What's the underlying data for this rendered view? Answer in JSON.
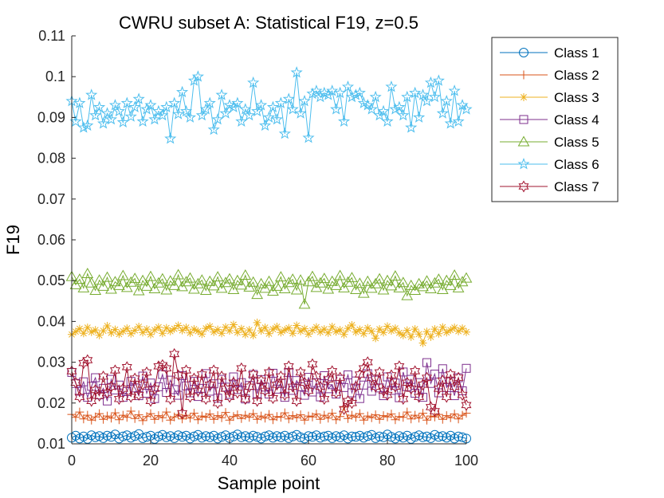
{
  "chart_data": {
    "type": "line",
    "title": "CWRU subset A: Statistical F19, z=0.5",
    "xlabel": "Sample point",
    "ylabel": "F19",
    "xlim": [
      0,
      100
    ],
    "ylim": [
      0.01,
      0.11
    ],
    "xticks": [
      0,
      20,
      40,
      60,
      80,
      100
    ],
    "xtick_labels": [
      "0",
      "20",
      "40",
      "60",
      "80",
      "100"
    ],
    "yticks": [
      0.01,
      0.02,
      0.03,
      0.04,
      0.05,
      0.06,
      0.07,
      0.08,
      0.09,
      0.1,
      0.11
    ],
    "ytick_labels": [
      "0.01",
      "0.02",
      "0.03",
      "0.04",
      "0.05",
      "0.06",
      "0.07",
      "0.08",
      "0.09",
      "0.1",
      "0.11"
    ],
    "grid": false,
    "legend_position": "outside-top-right",
    "x": [
      0,
      1,
      2,
      3,
      4,
      5,
      6,
      7,
      8,
      9,
      10,
      11,
      12,
      13,
      14,
      15,
      16,
      17,
      18,
      19,
      20,
      21,
      22,
      23,
      24,
      25,
      26,
      27,
      28,
      29,
      30,
      31,
      32,
      33,
      34,
      35,
      36,
      37,
      38,
      39,
      40,
      41,
      42,
      43,
      44,
      45,
      46,
      47,
      48,
      49,
      50,
      51,
      52,
      53,
      54,
      55,
      56,
      57,
      58,
      59,
      60,
      61,
      62,
      63,
      64,
      65,
      66,
      67,
      68,
      69,
      70,
      71,
      72,
      73,
      74,
      75,
      76,
      77,
      78,
      79,
      80,
      81,
      82,
      83,
      84,
      85,
      86,
      87,
      88,
      89,
      90,
      91,
      92,
      93,
      94,
      95,
      96,
      97,
      98,
      99,
      100
    ],
    "series": [
      {
        "name": "Class 1",
        "color": "#0072BD",
        "marker": "circle",
        "values": [
          0.0115,
          0.012,
          0.0113,
          0.0118,
          0.0112,
          0.0121,
          0.0116,
          0.0119,
          0.0114,
          0.012,
          0.0117,
          0.0123,
          0.0113,
          0.0118,
          0.0121,
          0.0115,
          0.0119,
          0.0124,
          0.0114,
          0.0117,
          0.012,
          0.0112,
          0.0118,
          0.0122,
          0.0116,
          0.0119,
          0.0114,
          0.0121,
          0.0117,
          0.012,
          0.0113,
          0.0118,
          0.0122,
          0.0115,
          0.0119,
          0.0116,
          0.012,
          0.0113,
          0.0117,
          0.0121,
          0.0114,
          0.0118,
          0.0123,
          0.0116,
          0.0119,
          0.0115,
          0.012,
          0.0117,
          0.0113,
          0.0118,
          0.0121,
          0.0115,
          0.0119,
          0.0116,
          0.012,
          0.0114,
          0.0118,
          0.0122,
          0.0116,
          0.0113,
          0.0119,
          0.0117,
          0.0121,
          0.0115,
          0.0118,
          0.012,
          0.0114,
          0.0119,
          0.0116,
          0.0121,
          0.0113,
          0.0118,
          0.0117,
          0.012,
          0.0115,
          0.0119,
          0.0122,
          0.0114,
          0.0118,
          0.0116,
          0.0123,
          0.0117,
          0.0113,
          0.0119,
          0.0115,
          0.012,
          0.0112,
          0.0117,
          0.0121,
          0.0116,
          0.0118,
          0.0114,
          0.0122,
          0.0117,
          0.0119,
          0.0115,
          0.012,
          0.0113,
          0.0118,
          0.0116,
          0.0113
        ]
      },
      {
        "name": "Class 2",
        "color": "#D95319",
        "marker": "plus",
        "values": [
          0.0172,
          0.0165,
          0.0178,
          0.0161,
          0.017,
          0.0158,
          0.0166,
          0.0174,
          0.016,
          0.0168,
          0.0163,
          0.0176,
          0.0159,
          0.017,
          0.0165,
          0.018,
          0.0162,
          0.0171,
          0.0157,
          0.0167,
          0.0174,
          0.016,
          0.0169,
          0.0164,
          0.0178,
          0.0158,
          0.0166,
          0.0172,
          0.0161,
          0.017,
          0.0163,
          0.0175,
          0.0159,
          0.0168,
          0.0165,
          0.0173,
          0.016,
          0.0169,
          0.0164,
          0.0177,
          0.0158,
          0.0167,
          0.0171,
          0.0162,
          0.017,
          0.0165,
          0.0174,
          0.016,
          0.0168,
          0.0163,
          0.0172,
          0.0159,
          0.0167,
          0.0165,
          0.0176,
          0.0161,
          0.0169,
          0.0164,
          0.0171,
          0.0158,
          0.0168,
          0.0166,
          0.0173,
          0.016,
          0.017,
          0.0163,
          0.0175,
          0.0159,
          0.0167,
          0.019,
          0.0162,
          0.017,
          0.0165,
          0.0174,
          0.0158,
          0.0168,
          0.0164,
          0.0171,
          0.016,
          0.0169,
          0.0166,
          0.0173,
          0.0159,
          0.0167,
          0.0165,
          0.0178,
          0.0161,
          0.017,
          0.0163,
          0.0175,
          0.0158,
          0.0168,
          0.0166,
          0.0172,
          0.016,
          0.0169,
          0.0164,
          0.0173,
          0.0161,
          0.017,
          0.0175
        ]
      },
      {
        "name": "Class 3",
        "color": "#EDB120",
        "marker": "asterisk",
        "values": [
          0.0368,
          0.0375,
          0.0382,
          0.0371,
          0.0385,
          0.0374,
          0.0379,
          0.0366,
          0.0377,
          0.0389,
          0.0372,
          0.038,
          0.0369,
          0.0376,
          0.0383,
          0.037,
          0.0378,
          0.0387,
          0.0373,
          0.0381,
          0.0368,
          0.0379,
          0.0386,
          0.0371,
          0.0384,
          0.0376,
          0.0382,
          0.039,
          0.0378,
          0.0385,
          0.0372,
          0.0381,
          0.0376,
          0.0369,
          0.0383,
          0.0388,
          0.0374,
          0.038,
          0.0371,
          0.0386,
          0.0377,
          0.0392,
          0.0373,
          0.0382,
          0.0368,
          0.0379,
          0.0366,
          0.0397,
          0.0377,
          0.0385,
          0.037,
          0.0381,
          0.0387,
          0.0373,
          0.0379,
          0.0384,
          0.0371,
          0.039,
          0.0376,
          0.0382,
          0.0369,
          0.0378,
          0.0386,
          0.0374,
          0.0381,
          0.0372,
          0.0387,
          0.0375,
          0.0379,
          0.0368,
          0.0383,
          0.0391,
          0.0374,
          0.038,
          0.037,
          0.0384,
          0.0376,
          0.0359,
          0.0381,
          0.0373,
          0.0388,
          0.0377,
          0.0383,
          0.0372,
          0.0366,
          0.0378,
          0.0362,
          0.0381,
          0.0369,
          0.0347,
          0.0375,
          0.0362,
          0.0381,
          0.037,
          0.0386,
          0.0373,
          0.0379,
          0.0385,
          0.0376,
          0.0383,
          0.0374
        ]
      },
      {
        "name": "Class 4",
        "color": "#7E2F8E",
        "marker": "square",
        "values": [
          0.0275,
          0.0248,
          0.0229,
          0.0252,
          0.0214,
          0.0241,
          0.0262,
          0.022,
          0.0236,
          0.0205,
          0.0258,
          0.0232,
          0.0244,
          0.0214,
          0.0228,
          0.0253,
          0.0237,
          0.0218,
          0.0266,
          0.0224,
          0.0249,
          0.0211,
          0.024,
          0.027,
          0.0226,
          0.0256,
          0.0233,
          0.0219,
          0.0267,
          0.0242,
          0.0225,
          0.0253,
          0.0216,
          0.0236,
          0.0272,
          0.0229,
          0.0247,
          0.0212,
          0.0258,
          0.0239,
          0.0221,
          0.0264,
          0.0233,
          0.025,
          0.021,
          0.0243,
          0.027,
          0.0223,
          0.0257,
          0.0239,
          0.0222,
          0.0273,
          0.0234,
          0.0248,
          0.0214,
          0.0275,
          0.0231,
          0.0255,
          0.024,
          0.0219,
          0.0263,
          0.0227,
          0.025,
          0.0215,
          0.0267,
          0.0235,
          0.0245,
          0.0222,
          0.0258,
          0.0238,
          0.0269,
          0.0225,
          0.0254,
          0.0211,
          0.0244,
          0.0272,
          0.0229,
          0.0256,
          0.0237,
          0.0218,
          0.0264,
          0.0231,
          0.0249,
          0.0213,
          0.0276,
          0.024,
          0.0258,
          0.0224,
          0.025,
          0.0214,
          0.0299,
          0.0248,
          0.0271,
          0.0225,
          0.0284,
          0.0238,
          0.0252,
          0.0218,
          0.0262,
          0.023,
          0.0285
        ]
      },
      {
        "name": "Class 5",
        "color": "#77AC30",
        "marker": "triangle",
        "values": [
          0.051,
          0.049,
          0.0503,
          0.0482,
          0.0517,
          0.0494,
          0.0476,
          0.0501,
          0.0486,
          0.0508,
          0.0479,
          0.0497,
          0.0488,
          0.0512,
          0.0483,
          0.0496,
          0.0505,
          0.0475,
          0.05,
          0.0486,
          0.051,
          0.048,
          0.0494,
          0.0504,
          0.0477,
          0.0499,
          0.0488,
          0.0514,
          0.0485,
          0.0497,
          0.0506,
          0.0479,
          0.0492,
          0.0501,
          0.0476,
          0.0498,
          0.0487,
          0.0509,
          0.0481,
          0.0495,
          0.0504,
          0.0478,
          0.05,
          0.0489,
          0.0513,
          0.0484,
          0.0496,
          0.0466,
          0.0492,
          0.0481,
          0.0498,
          0.0474,
          0.0486,
          0.0509,
          0.048,
          0.0495,
          0.0503,
          0.0477,
          0.0501,
          0.0442,
          0.0497,
          0.051,
          0.0483,
          0.0494,
          0.0505,
          0.0479,
          0.0498,
          0.0488,
          0.0512,
          0.0482,
          0.0496,
          0.0507,
          0.0478,
          0.0493,
          0.0469,
          0.0498,
          0.0481,
          0.0492,
          0.0504,
          0.0477,
          0.05,
          0.0487,
          0.0511,
          0.0482,
          0.0495,
          0.0463,
          0.0488,
          0.0476,
          0.0492,
          0.0485,
          0.0499,
          0.048,
          0.0494,
          0.0503,
          0.0478,
          0.05,
          0.0488,
          0.0513,
          0.0482,
          0.0497,
          0.0506
        ]
      },
      {
        "name": "Class 6",
        "color": "#4DBEEE",
        "marker": "pentagram",
        "values": [
          0.094,
          0.089,
          0.0935,
          0.0875,
          0.088,
          0.0955,
          0.0905,
          0.0925,
          0.0885,
          0.091,
          0.0895,
          0.093,
          0.0915,
          0.0888,
          0.0935,
          0.0902,
          0.0925,
          0.0945,
          0.089,
          0.092,
          0.093,
          0.0895,
          0.0915,
          0.0905,
          0.0925,
          0.0848,
          0.0935,
          0.0908,
          0.0962,
          0.0915,
          0.09,
          0.099,
          0.1,
          0.0905,
          0.092,
          0.0935,
          0.087,
          0.0895,
          0.0955,
          0.091,
          0.093,
          0.0925,
          0.0935,
          0.089,
          0.092,
          0.0905,
          0.0985,
          0.0915,
          0.093,
          0.088,
          0.09,
          0.0925,
          0.0895,
          0.0935,
          0.086,
          0.0945,
          0.092,
          0.101,
          0.091,
          0.094,
          0.085,
          0.0958,
          0.0965,
          0.095,
          0.096,
          0.0955,
          0.0965,
          0.092,
          0.096,
          0.089,
          0.0975,
          0.095,
          0.0955,
          0.096,
          0.0935,
          0.093,
          0.092,
          0.095,
          0.0905,
          0.0915,
          0.089,
          0.0975,
          0.092,
          0.0925,
          0.0905,
          0.095,
          0.0875,
          0.096,
          0.09,
          0.0955,
          0.094,
          0.0985,
          0.095,
          0.099,
          0.091,
          0.094,
          0.0885,
          0.0965,
          0.089,
          0.093,
          0.092
        ]
      },
      {
        "name": "Class 7",
        "color": "#A2142F",
        "marker": "hexagram",
        "values": [
          0.0278,
          0.025,
          0.0215,
          0.0298,
          0.0305,
          0.0205,
          0.0232,
          0.0218,
          0.0265,
          0.0225,
          0.024,
          0.028,
          0.021,
          0.0235,
          0.0288,
          0.0215,
          0.026,
          0.022,
          0.0245,
          0.0275,
          0.0205,
          0.0235,
          0.029,
          0.0293,
          0.0285,
          0.021,
          0.032,
          0.0268,
          0.0175,
          0.028,
          0.0215,
          0.026,
          0.023,
          0.027,
          0.021,
          0.0245,
          0.028,
          0.02,
          0.0265,
          0.0235,
          0.0215,
          0.025,
          0.0225,
          0.0285,
          0.021,
          0.024,
          0.027,
          0.0205,
          0.0255,
          0.023,
          0.0275,
          0.0212,
          0.0245,
          0.0265,
          0.022,
          0.029,
          0.024,
          0.0205,
          0.0275,
          0.025,
          0.023,
          0.0295,
          0.0265,
          0.024,
          0.021,
          0.0258,
          0.0278,
          0.0225,
          0.0262,
          0.0185,
          0.0205,
          0.02,
          0.024,
          0.027,
          0.0285,
          0.03,
          0.0262,
          0.024,
          0.0275,
          0.023,
          0.022,
          0.0268,
          0.024,
          0.029,
          0.021,
          0.025,
          0.0235,
          0.0278,
          0.0215,
          0.0245,
          0.0262,
          0.019,
          0.018,
          0.0235,
          0.0255,
          0.0215,
          0.027,
          0.024,
          0.0262,
          0.022,
          0.0195
        ]
      }
    ]
  }
}
